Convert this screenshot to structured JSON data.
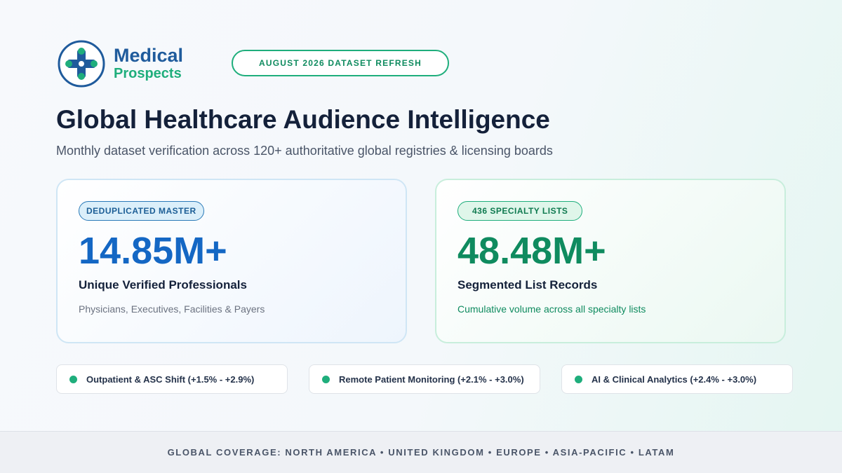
{
  "header": {
    "logo_line1": "Medical",
    "logo_line2": "Prospects",
    "badge": "AUGUST 2026 DATASET REFRESH",
    "title": "Global Healthcare Audience Intelligence",
    "subtitle": "Monthly dataset verification across 120+ authoritative global registries & licensing boards"
  },
  "cards": [
    {
      "tag": "DEDUPLICATED MASTER",
      "stat": "14.85M+",
      "label": "Unique Verified Professionals",
      "note": "Physicians, Executives, Facilities & Payers"
    },
    {
      "tag": "436 SPECIALTY LISTS",
      "stat": "48.48M+",
      "label": "Segmented List Records",
      "note": "Cumulative volume across all specialty lists"
    }
  ],
  "trends": [
    "Outpatient & ASC Shift (+1.5% - +2.9%)",
    "Remote Patient Monitoring (+2.1% - +3.0%)",
    "AI & Clinical Analytics (+2.4% - +3.0%)"
  ],
  "footer": "GLOBAL COVERAGE: NORTH AMERICA • UNITED KINGDOM • EUROPE • ASIA-PACIFIC • LATAM"
}
